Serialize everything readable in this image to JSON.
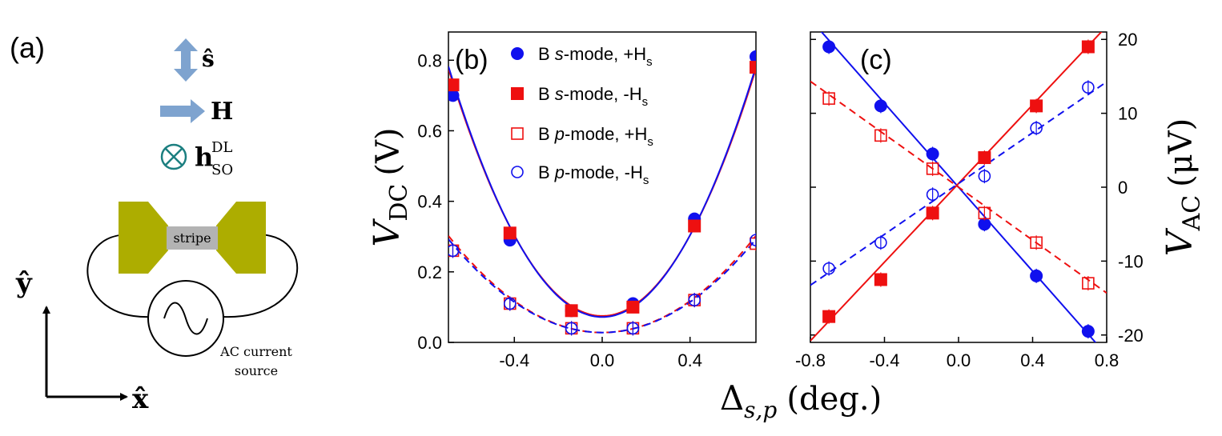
{
  "panel_a": {
    "label": "(a)",
    "s_label": "ŝ",
    "h_label": "H",
    "hso_main": "h",
    "hso_sup": "DL",
    "hso_sub": "SO",
    "stripe_label": "stripe",
    "source_line1": "AC current",
    "source_line2": "source",
    "y_axis_label": "ŷ",
    "x_axis_label": "x̂",
    "colors": {
      "arrow": "#7ea3cf",
      "pad": "#adad00",
      "stripe": "#b3b3b3",
      "circle_x": "#1c7f80"
    }
  },
  "shared_xlabel_main": "Δ",
  "shared_xlabel_sub": "s,p",
  "shared_xlabel_unit": "(deg.)",
  "chart_data": [
    {
      "panel": "(b)",
      "type": "scatter",
      "ylabel_main": "V",
      "ylabel_sub": "DC",
      "ylabel_unit": "(V)",
      "xlim": [
        -0.7,
        0.7
      ],
      "ylim": [
        0.0,
        0.88
      ],
      "xticks": [
        -0.4,
        0.0,
        0.4
      ],
      "xtick_labels": [
        "-0.4",
        "0.0",
        "0.4"
      ],
      "yticks": [
        0.0,
        0.2,
        0.4,
        0.6,
        0.8
      ],
      "ytick_labels": [
        "0.0",
        "0.2",
        "0.4",
        "0.6",
        "0.8"
      ],
      "legend_position": "top-right",
      "series": [
        {
          "name": "B s-mode, +Hs",
          "legend_prefix": "B ",
          "legend_italic": "s",
          "legend_suffix": "-mode, +H",
          "legend_sub": "s",
          "color": "#1010ee",
          "marker": "filled-circle",
          "x": [
            -0.68,
            -0.42,
            -0.14,
            0.14,
            0.42,
            0.7
          ],
          "y": [
            0.7,
            0.29,
            0.09,
            0.11,
            0.35,
            0.81
          ]
        },
        {
          "name": "B s-mode, -Hs",
          "legend_prefix": "B ",
          "legend_italic": "s",
          "legend_suffix": "-mode, -H",
          "legend_sub": "s",
          "color": "#ee1010",
          "marker": "filled-square",
          "x": [
            -0.68,
            -0.42,
            -0.14,
            0.14,
            0.42,
            0.7
          ],
          "y": [
            0.73,
            0.31,
            0.09,
            0.1,
            0.33,
            0.78
          ]
        },
        {
          "name": "B p-mode, +Hs",
          "legend_prefix": "B ",
          "legend_italic": "p",
          "legend_suffix": "-mode, +H",
          "legend_sub": "s",
          "color": "#ee1010",
          "marker": "open-square",
          "x": [
            -0.68,
            -0.42,
            -0.14,
            0.14,
            0.42,
            0.7
          ],
          "y": [
            0.26,
            0.11,
            0.04,
            0.04,
            0.12,
            0.28
          ]
        },
        {
          "name": "B p-mode, -Hs",
          "legend_prefix": "B ",
          "legend_italic": "p",
          "legend_suffix": "-mode, -H",
          "legend_sub": "s",
          "color": "#1010ee",
          "marker": "open-circle",
          "x": [
            -0.68,
            -0.42,
            -0.14,
            0.14,
            0.42,
            0.7
          ],
          "y": [
            0.26,
            0.11,
            0.04,
            0.04,
            0.12,
            0.29
          ]
        }
      ],
      "fits": [
        {
          "color": "#ee1010",
          "dash": false,
          "a": 1.43,
          "c": 0.075
        },
        {
          "color": "#1010ee",
          "dash": false,
          "a": 1.45,
          "c": 0.072
        },
        {
          "color": "#ee1010",
          "dash": true,
          "a": 0.56,
          "c": 0.028
        },
        {
          "color": "#1010ee",
          "dash": true,
          "a": 0.54,
          "c": 0.028
        }
      ]
    },
    {
      "panel": "(c)",
      "type": "scatter",
      "ylabel_main": "V",
      "ylabel_sub": "AC",
      "ylabel_unit": "(μV)",
      "y_axis_side": "right",
      "xlim": [
        -0.8,
        0.8
      ],
      "ylim": [
        -21,
        21
      ],
      "xticks": [
        -0.8,
        -0.4,
        0.0,
        0.4,
        0.8
      ],
      "xtick_labels": [
        "-0.8",
        "-0.4",
        "0.0",
        "0.4",
        "0.8"
      ],
      "yticks": [
        -20,
        -10,
        0,
        10,
        20
      ],
      "ytick_labels": [
        "-20",
        "-10",
        "0",
        "10",
        "20"
      ],
      "series": [
        {
          "color": "#1010ee",
          "marker": "filled-circle",
          "x": [
            -0.7,
            -0.42,
            -0.14,
            0.14,
            0.42,
            0.7
          ],
          "y": [
            19.0,
            11.0,
            4.5,
            -5.0,
            -12.0,
            -19.5
          ]
        },
        {
          "color": "#ee1010",
          "marker": "filled-square",
          "x": [
            -0.7,
            -0.42,
            -0.14,
            0.14,
            0.42,
            0.7
          ],
          "y": [
            -17.5,
            -12.5,
            -3.5,
            4.0,
            11.0,
            19.0
          ]
        },
        {
          "color": "#ee1010",
          "marker": "open-square",
          "x": [
            -0.7,
            -0.42,
            -0.14,
            0.14,
            0.42,
            0.7
          ],
          "y": [
            12.0,
            7.0,
            2.5,
            -3.5,
            -7.5,
            -13.0
          ]
        },
        {
          "color": "#1010ee",
          "marker": "open-circle",
          "x": [
            -0.7,
            -0.42,
            -0.14,
            0.14,
            0.42,
            0.7
          ],
          "y": [
            -11.0,
            -7.5,
            -1.0,
            1.5,
            8.0,
            13.5
          ]
        }
      ],
      "fits": [
        {
          "color": "#1010ee",
          "dash": false,
          "m": -28.4,
          "b": 0.0
        },
        {
          "color": "#ee1010",
          "dash": false,
          "m": 26.6,
          "b": 0.5
        },
        {
          "color": "#ee1010",
          "dash": true,
          "m": -17.9,
          "b": 0.0
        },
        {
          "color": "#1010ee",
          "dash": true,
          "m": 17.2,
          "b": 0.5
        }
      ]
    }
  ]
}
